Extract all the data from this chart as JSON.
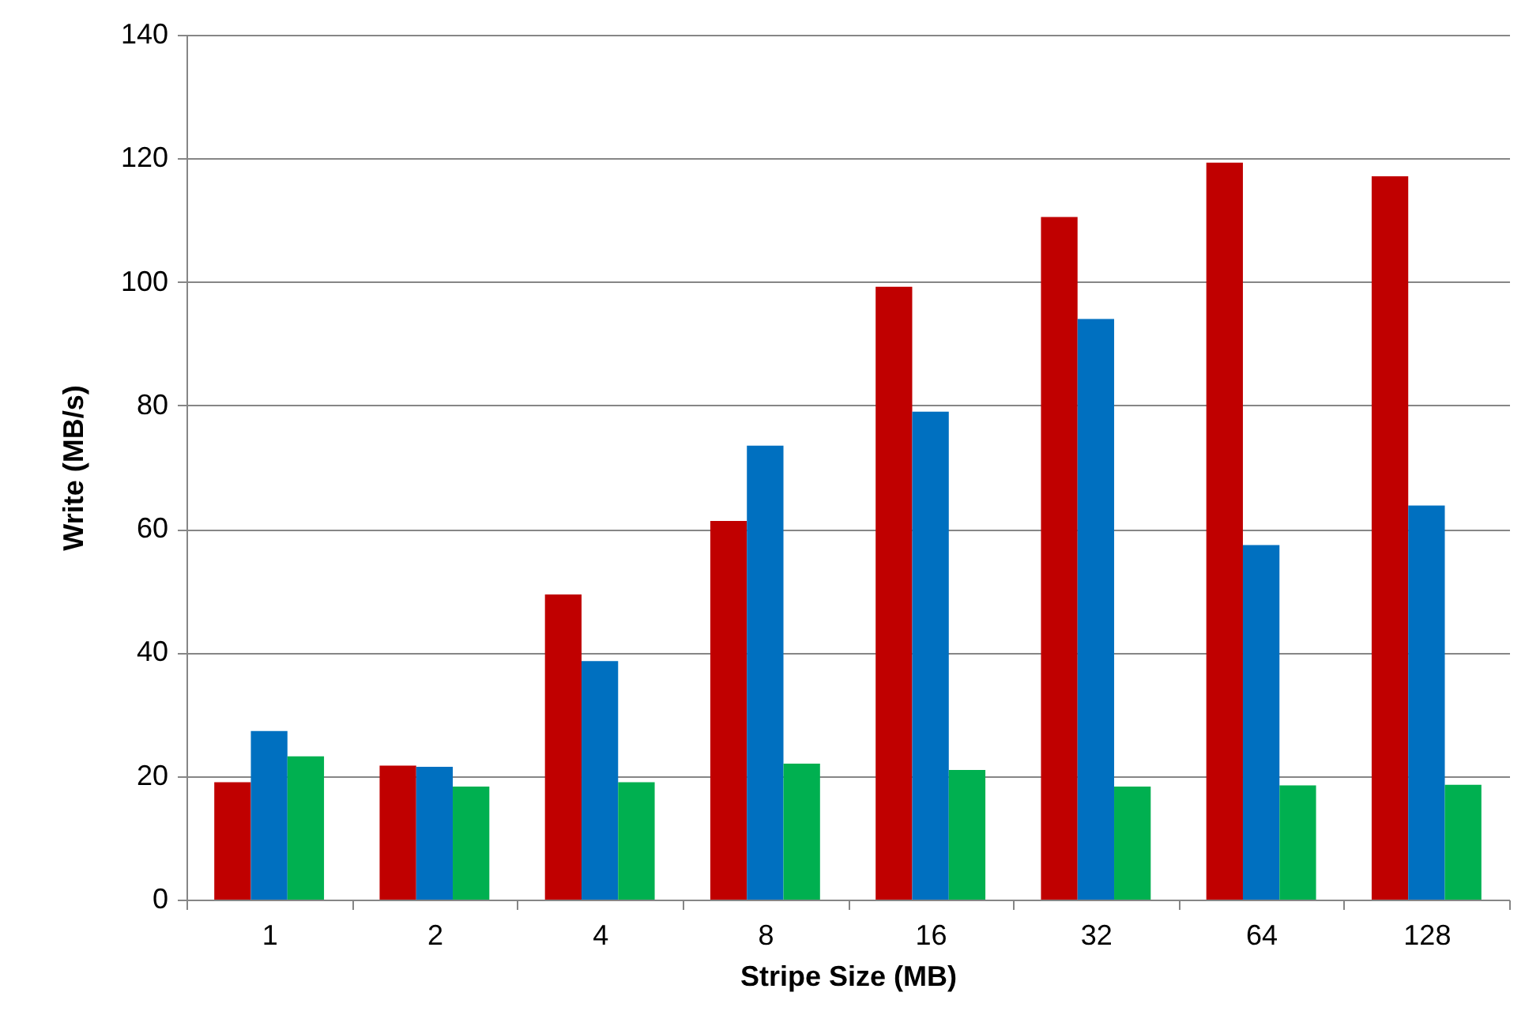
{
  "chart_data": {
    "type": "bar",
    "xlabel": "Stripe Size (MB)",
    "ylabel": "Write (MB/s)",
    "categories": [
      "1",
      "2",
      "4",
      "8",
      "16",
      "32",
      "64",
      "128"
    ],
    "series": [
      {
        "color": "#c00000",
        "values": [
          19,
          21.7,
          49.4,
          61.3,
          99.2,
          110.5,
          119.3,
          117.1
        ]
      },
      {
        "color": "#0070c0",
        "values": [
          27.3,
          21.5,
          38.6,
          73.5,
          79,
          94,
          57.4,
          63.8
        ]
      },
      {
        "color": "#00b050",
        "values": [
          23.2,
          18.3,
          19,
          22,
          21,
          18.3,
          18.5,
          18.6
        ]
      }
    ],
    "ylim": [
      0,
      140
    ],
    "yticks": [
      0,
      20,
      40,
      60,
      80,
      100,
      120,
      140
    ],
    "grid": "y",
    "legend": false
  }
}
